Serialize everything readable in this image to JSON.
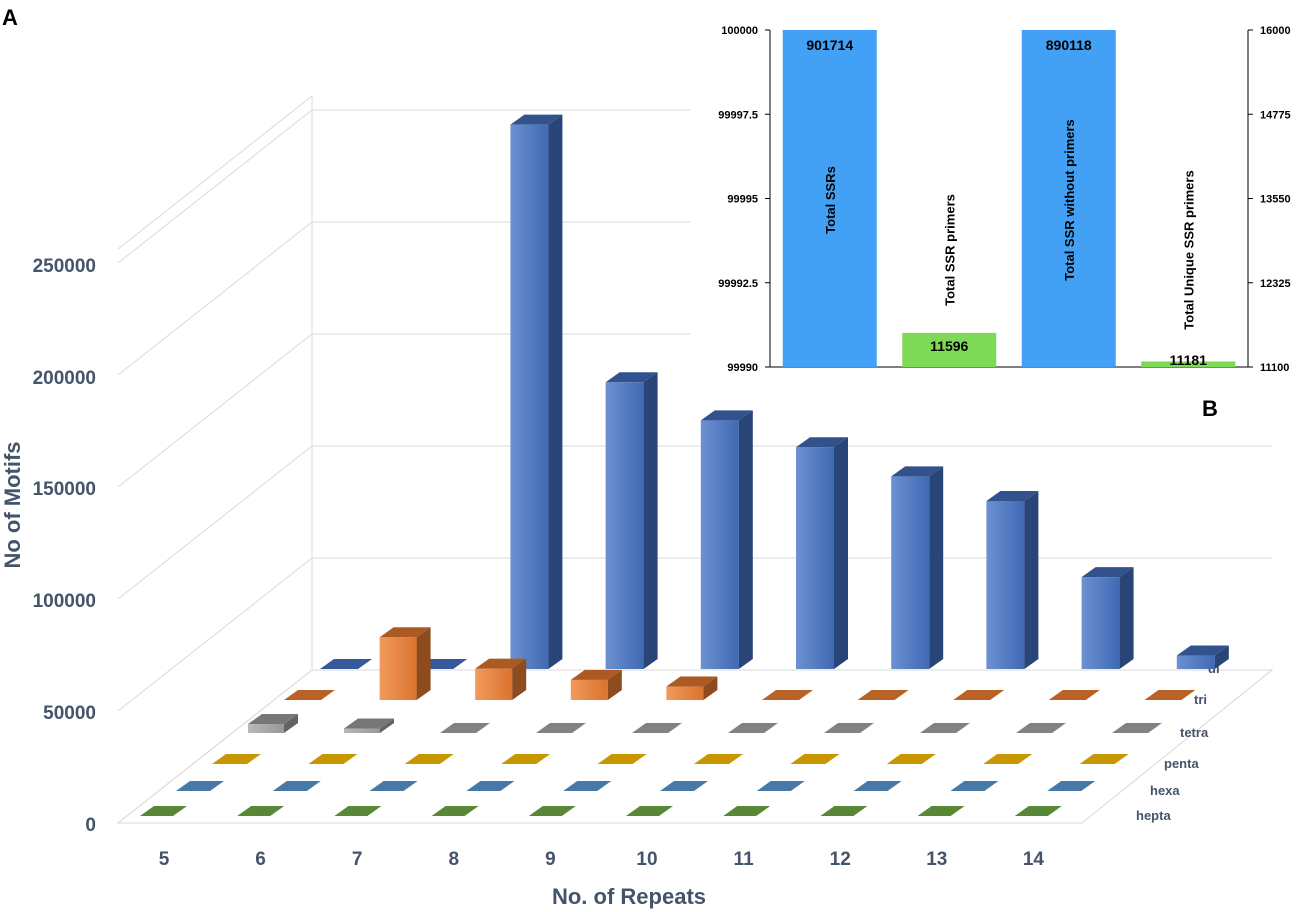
{
  "panel_labels": {
    "a": "A",
    "b": "B"
  },
  "colors": {
    "di": "#4472c4",
    "tri": "#ed7d31",
    "tetra": "#a5a5a5",
    "penta": "#ffc000",
    "hexa": "#5b9bd5",
    "hepta": "#70ad47",
    "axis_text": "#44546a",
    "inset_blue": "#42a1f5",
    "inset_green": "#7ed957"
  },
  "chart_data": [
    {
      "type": "bar",
      "style": "3d-column",
      "title": "",
      "xlabel": "No. of Repeats",
      "ylabel": "No of Motifs",
      "categories": [
        "5",
        "6",
        "7",
        "8",
        "9",
        "10",
        "11",
        "12",
        "13",
        "14"
      ],
      "yticks": [
        "0",
        "50000",
        "100000",
        "150000",
        "200000",
        "250000"
      ],
      "ylim": [
        0,
        300000
      ],
      "grid": true,
      "series": [
        {
          "name": "di",
          "values": [
            0,
            0,
            243000,
            128000,
            111000,
            99000,
            86000,
            75000,
            41000,
            6000
          ]
        },
        {
          "name": "tri",
          "values": [
            0,
            28000,
            14000,
            9000,
            6000,
            0,
            0,
            0,
            0,
            0
          ]
        },
        {
          "name": "tetra",
          "values": [
            4000,
            2000,
            0,
            0,
            0,
            0,
            0,
            0,
            0,
            0
          ]
        },
        {
          "name": "penta",
          "values": [
            0,
            0,
            0,
            0,
            0,
            0,
            0,
            0,
            0,
            0
          ]
        },
        {
          "name": "hexa",
          "values": [
            0,
            0,
            0,
            0,
            0,
            0,
            0,
            0,
            0,
            0
          ]
        },
        {
          "name": "hepta",
          "values": [
            0,
            0,
            0,
            0,
            0,
            0,
            0,
            0,
            0,
            0
          ]
        }
      ]
    },
    {
      "type": "bar",
      "title": "",
      "categories": [
        "Total SSRs",
        "Total SSR primers",
        "Total SSR without primers",
        "Total Unique SSR primers"
      ],
      "values": [
        901714,
        11596,
        890118,
        11181
      ],
      "data_labels": [
        "901714",
        "11596",
        "890118",
        "11181"
      ],
      "left_axis": {
        "ylim": [
          99990,
          100000
        ],
        "ticks": [
          "99990",
          "99992.5",
          "99995",
          "99997.5",
          "100000"
        ]
      },
      "right_axis": {
        "ylim": [
          11100,
          16000
        ],
        "ticks": [
          "11100",
          "12325",
          "13550",
          "14775",
          "16000"
        ]
      },
      "bar_axes": [
        "left",
        "right",
        "left",
        "right"
      ],
      "grid": false
    }
  ]
}
